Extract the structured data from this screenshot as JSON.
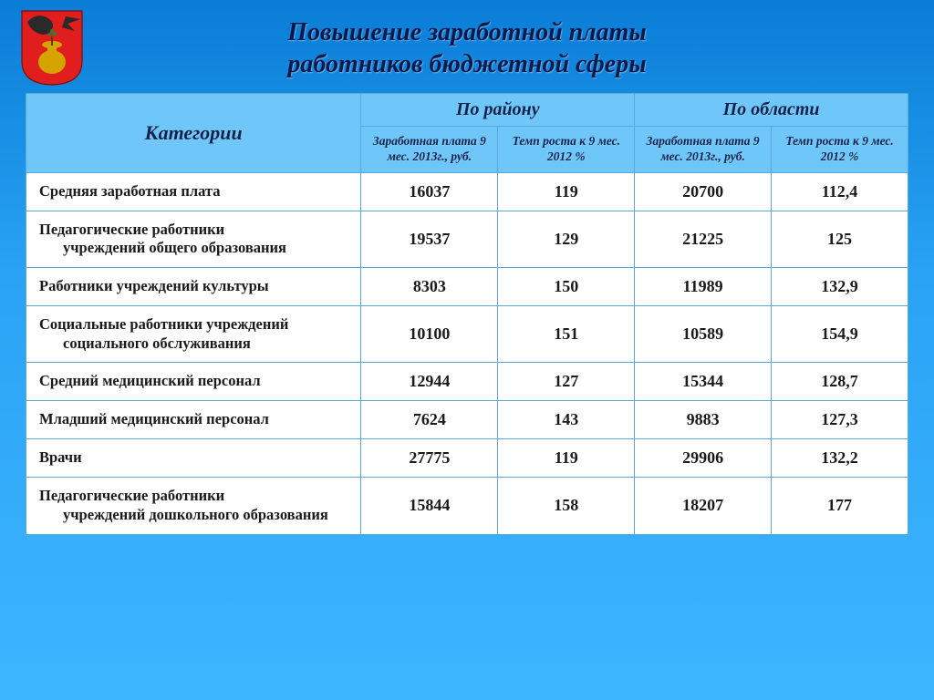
{
  "title_line1": "Повышение заработной платы",
  "title_line2": "работников бюджетной сферы",
  "colors": {
    "bg_top": "#0a7dd6",
    "bg_mid": "#2aa3f5",
    "bg_bot": "#3db5ff",
    "th_bg": "#6fc6f8",
    "th_text": "#0d224d",
    "cell_bg": "#ffffff",
    "cell_text": "#1a1a1a",
    "border": "#5aa7d8",
    "crest_shield": "#e01e1e",
    "crest_vase": "#d6a400",
    "crest_bird": "#2a2a2a"
  },
  "table": {
    "head": {
      "categories": "Категории",
      "group_district": "По району",
      "group_region": "По области",
      "salary_2013": "Заработная плата  9 мес. 2013г., руб.",
      "growth_2012": "Темп роста к 9 мес. 2012  %",
      "salary_2013_r": "Заработная плата  9 мес. 2013г., руб.",
      "growth_2012_r": "Темп  роста к 9 мес. 2012 %"
    },
    "rows": [
      {
        "cat1": "Средняя заработная плата",
        "cat2": "",
        "v1": "16037",
        "v2": "119",
        "v3": "20700",
        "v4": "112,4"
      },
      {
        "cat1": "Педагогические работники",
        "cat2": "учреждений общего образования",
        "v1": "19537",
        "v2": "129",
        "v3": "21225",
        "v4": "125"
      },
      {
        "cat1": "Работники учреждений культуры",
        "cat2": "",
        "v1": "8303",
        "v2": "150",
        "v3": "11989",
        "v4": "132,9"
      },
      {
        "cat1": "Социальные работники учреждений",
        "cat2": "социального обслуживания",
        "v1": "10100",
        "v2": "151",
        "v3": "10589",
        "v4": "154,9"
      },
      {
        "cat1": "Средний медицинский персонал",
        "cat2": "",
        "v1": "12944",
        "v2": "127",
        "v3": "15344",
        "v4": "128,7"
      },
      {
        "cat1": "Младший медицинский персонал",
        "cat2": "",
        "v1": "7624",
        "v2": "143",
        "v3": "9883",
        "v4": "127,3"
      },
      {
        "cat1": "Врачи",
        "cat2": "",
        "v1": "27775",
        "v2": "119",
        "v3": "29906",
        "v4": "132,2"
      },
      {
        "cat1": "Педагогические работники",
        "cat2": "учреждений дошкольного образования",
        "v1": "15844",
        "v2": "158",
        "v3": "18207",
        "v4": "177"
      }
    ]
  }
}
